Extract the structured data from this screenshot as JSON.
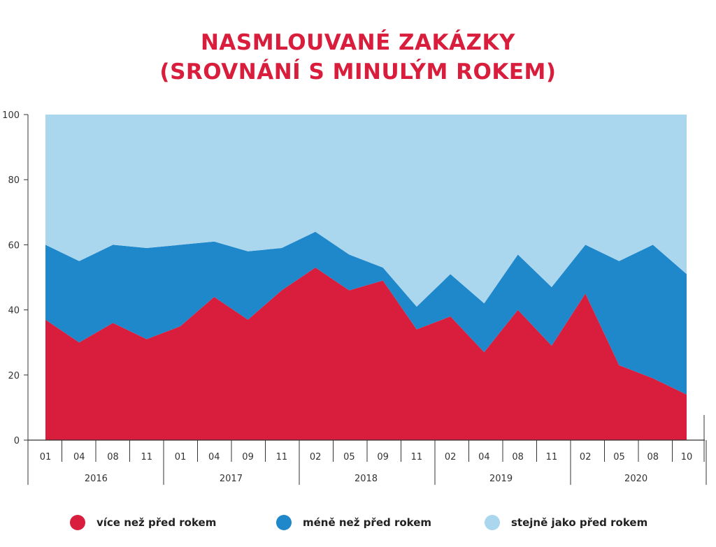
{
  "title": {
    "line1": "NASMLOUVANÉ ZAKÁZKY",
    "line2": "(SROVNÁNÍ S MINULÝM ROKEM)"
  },
  "chart_data": {
    "type": "area",
    "stacked": true,
    "title": "NASMLOUVANÉ ZAKÁZKY (SROVNÁNÍ S MINULÝM ROKEM)",
    "xlabel": "",
    "ylabel": "",
    "ylim": [
      0,
      100
    ],
    "yticks": [
      0,
      20,
      40,
      60,
      80,
      100
    ],
    "grid": false,
    "legend_position": "bottom",
    "categories": [
      "01",
      "04",
      "08",
      "11",
      "01",
      "04",
      "09",
      "11",
      "02",
      "05",
      "09",
      "11",
      "02",
      "04",
      "08",
      "11",
      "02",
      "05",
      "08",
      "10"
    ],
    "years": [
      {
        "label": "2016",
        "count": 4
      },
      {
        "label": "2017",
        "count": 4
      },
      {
        "label": "2018",
        "count": 4
      },
      {
        "label": "2019",
        "count": 4
      },
      {
        "label": "2020",
        "count": 4
      }
    ],
    "series": [
      {
        "name": "více než před rokem",
        "color": "#d81e3c",
        "values": [
          37,
          30,
          36,
          31,
          35,
          44,
          37,
          46,
          53,
          46,
          49,
          34,
          38,
          27,
          40,
          29,
          45,
          23,
          19,
          14
        ]
      },
      {
        "name": "méně než před rokem",
        "color": "#1e88cb",
        "values": [
          23,
          25,
          24,
          28,
          25,
          17,
          21,
          13,
          11,
          11,
          4,
          7,
          13,
          15,
          17,
          18,
          15,
          32,
          41,
          37
        ]
      },
      {
        "name": "stejně jako před rokem",
        "color": "#aad6ee",
        "values": [
          40,
          45,
          40,
          41,
          40,
          39,
          42,
          41,
          36,
          43,
          47,
          59,
          49,
          58,
          43,
          53,
          40,
          45,
          40,
          49
        ]
      }
    ]
  }
}
